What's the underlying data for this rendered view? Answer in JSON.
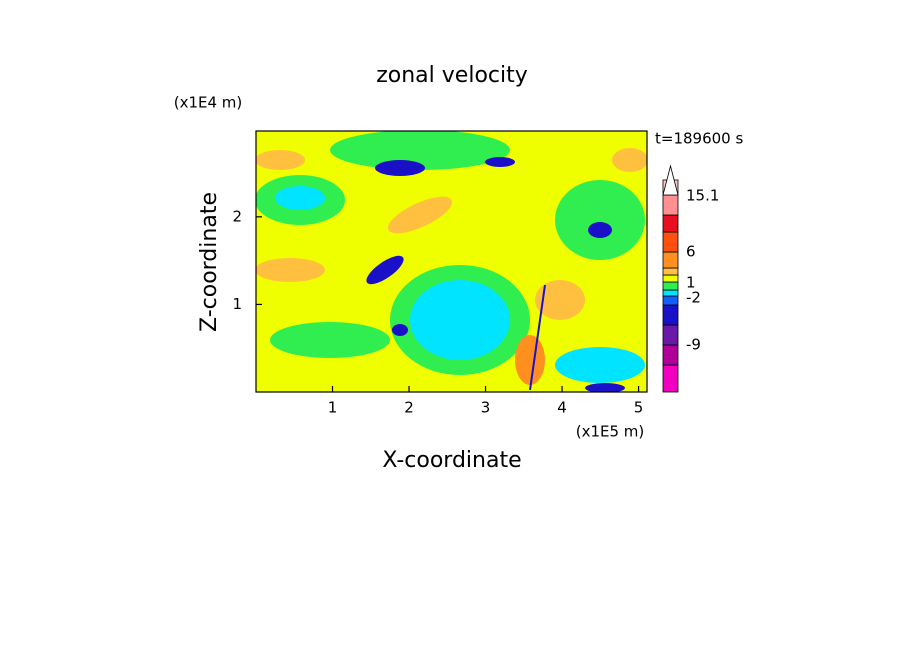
{
  "chart_data": {
    "type": "contour",
    "title": "zonal velocity",
    "x_label": "X-coordinate",
    "y_label": "Z-coordinate",
    "x_unit": "(x1E5 m)",
    "y_unit": "(x1E4 m)",
    "annotation": "t=189600 s",
    "xlim": [
      0,
      5.11
    ],
    "ylim": [
      0,
      2.98
    ],
    "xticks": [
      1,
      2,
      3,
      4,
      5
    ],
    "yticks": [
      1,
      2
    ],
    "colorbar": {
      "colors": [
        "#f000c0",
        "#b0009a",
        "#6a18a8",
        "#1a10c8",
        "#1060ff",
        "#00e4ff",
        "#30ee50",
        "#f0ff00",
        "#ffc040",
        "#ff9020",
        "#ff5010",
        "#e81020",
        "#ff9090",
        "#ffc8c8"
      ],
      "labels": [
        15.1,
        6,
        1,
        -2,
        -9
      ]
    }
  }
}
